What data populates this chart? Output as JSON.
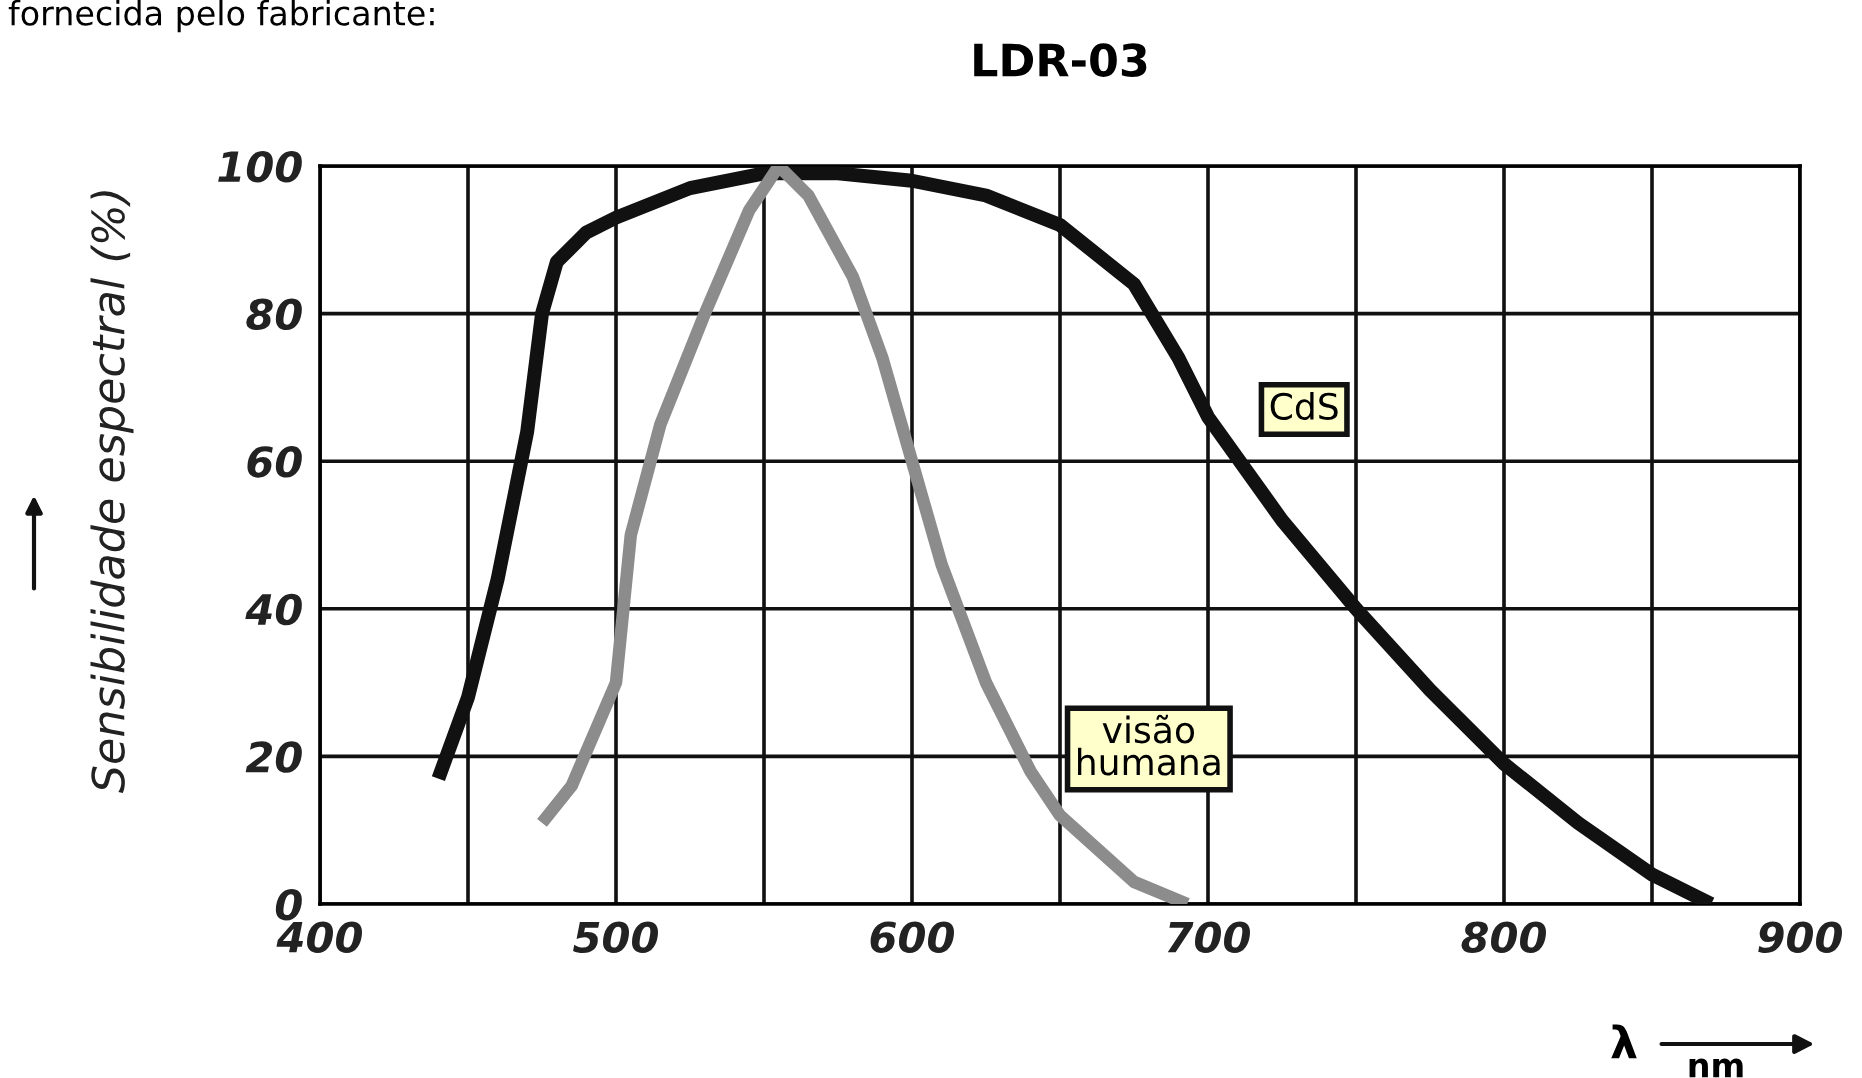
{
  "chart_data": {
    "type": "line",
    "title": "LDR-03",
    "xlabel": "λ",
    "ylabel": "Sensibilidade espectral (%)",
    "annotations": [
      "nm",
      "fornecida pelo fabricante:"
    ],
    "xlim": [
      400,
      900
    ],
    "xticks": [
      400,
      500,
      600,
      700,
      800,
      900
    ],
    "ylim": [
      0,
      100
    ],
    "yticks": [
      0,
      20,
      40,
      60,
      80,
      100
    ],
    "grid": true,
    "legend": false,
    "series": [
      {
        "name": "CdS",
        "color": "#111111",
        "x": [
          440,
          450,
          460,
          470,
          475,
          480,
          490,
          500,
          525,
          550,
          575,
          600,
          625,
          650,
          675,
          690,
          700,
          725,
          750,
          775,
          800,
          825,
          850,
          870
        ],
        "values": [
          17,
          28,
          44,
          64,
          80,
          87,
          91,
          93,
          97,
          99,
          99,
          98,
          96,
          92,
          84,
          74,
          66,
          52,
          40,
          29,
          19,
          11,
          4,
          0
        ]
      },
      {
        "name": "visão humana",
        "color": "#8c8c8c",
        "x": [
          475,
          485,
          500,
          505,
          515,
          530,
          545,
          555,
          565,
          580,
          590,
          600,
          610,
          625,
          640,
          650,
          675,
          693
        ],
        "values": [
          11,
          16,
          30,
          50,
          65,
          80,
          94,
          100,
          96,
          85,
          74,
          60,
          46,
          30,
          18,
          12,
          3,
          0
        ]
      }
    ]
  }
}
